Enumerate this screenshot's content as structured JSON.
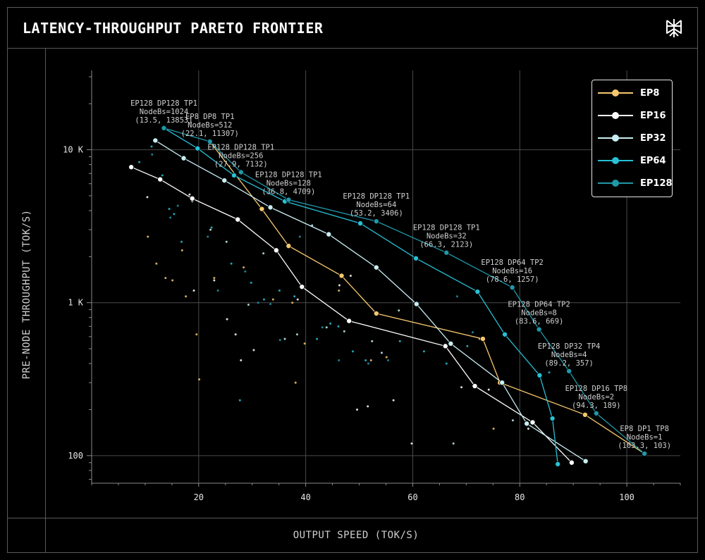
{
  "title": "LATENCY-THROUGHPUT PARETO FRONTIER",
  "colors": {
    "EP8": "#f6c86d",
    "EP16": "#ffffff",
    "EP32": "#c9eef3",
    "EP64": "#27c0d6",
    "EP128": "#1f98a8",
    "grid": "#4a4a4a",
    "axis": "#8a8a8a"
  },
  "legend": {
    "items": [
      {
        "label": "EP8"
      },
      {
        "label": "EP16"
      },
      {
        "label": "EP32"
      },
      {
        "label": "EP64"
      },
      {
        "label": "EP128"
      }
    ]
  },
  "chart_data": {
    "type": "scatter",
    "title": "LATENCY-THROUGHPUT PARETO FRONTIER",
    "xlabel": "OUTPUT SPEED (TOK/S)",
    "ylabel": "PRE-NODE THROUGHPUT (TOK/S)",
    "xlim": [
      0,
      110
    ],
    "ylim": [
      66,
      33000
    ],
    "yscale": "log",
    "xticks": [
      20,
      40,
      60,
      80,
      100
    ],
    "yticks": [
      {
        "value": 100,
        "label": "100"
      },
      {
        "value": 1000,
        "label": "1 K"
      },
      {
        "value": 10000,
        "label": "10 K"
      }
    ],
    "grid": true,
    "legend_position": "top-right",
    "series": [
      {
        "name": "EP8",
        "color": "#f6c86d",
        "frontier": [
          [
            22.1,
            11307
          ],
          [
            31.8,
            4100
          ],
          [
            36.8,
            2350
          ],
          [
            46.7,
            1500
          ],
          [
            53.2,
            850
          ],
          [
            73.1,
            580
          ],
          [
            76.3,
            300
          ],
          [
            92.2,
            185
          ],
          [
            103.3,
            103
          ]
        ],
        "scatter": [
          [
            10.5,
            2700
          ],
          [
            12.1,
            1800
          ],
          [
            13.8,
            1450
          ],
          [
            15.1,
            1400
          ],
          [
            16.9,
            2200
          ],
          [
            17.6,
            1100
          ],
          [
            19.6,
            620
          ],
          [
            20.1,
            315
          ],
          [
            22.9,
            1450
          ],
          [
            28.4,
            1700
          ],
          [
            33.9,
            1050
          ],
          [
            37.5,
            1000
          ],
          [
            38.1,
            300
          ],
          [
            39.8,
            540
          ],
          [
            46.2,
            1200
          ],
          [
            52.2,
            420
          ],
          [
            55.1,
            440
          ],
          [
            72.5,
            580
          ],
          [
            75.1,
            150
          ]
        ]
      },
      {
        "name": "EP16",
        "color": "#ffffff",
        "frontier": [
          [
            7.4,
            7700
          ],
          [
            12.8,
            6400
          ],
          [
            18.8,
            4800
          ],
          [
            27.3,
            3500
          ],
          [
            34.5,
            2200
          ],
          [
            39.3,
            1270
          ],
          [
            48.1,
            760
          ],
          [
            66.1,
            520
          ],
          [
            71.6,
            285
          ],
          [
            82.4,
            165
          ],
          [
            89.7,
            90
          ]
        ],
        "scatter": [
          [
            10.4,
            4900
          ],
          [
            18.3,
            5100
          ],
          [
            19.1,
            1200
          ],
          [
            22.9,
            1400
          ],
          [
            25.3,
            780
          ],
          [
            26.9,
            620
          ],
          [
            27.9,
            420
          ],
          [
            30.3,
            490
          ],
          [
            38.5,
            1050
          ],
          [
            46.3,
            1300
          ],
          [
            48.4,
            1500
          ],
          [
            49.6,
            200
          ],
          [
            51.6,
            210
          ],
          [
            53.1,
            860
          ],
          [
            56.4,
            230
          ],
          [
            59.8,
            120
          ],
          [
            69.1,
            280
          ],
          [
            74.2,
            270
          ],
          [
            81.6,
            150
          ]
        ]
      },
      {
        "name": "EP32",
        "color": "#c9eef3",
        "frontier": [
          [
            11.9,
            11500
          ],
          [
            17.2,
            8800
          ],
          [
            24.8,
            6300
          ],
          [
            33.4,
            4200
          ],
          [
            44.3,
            2800
          ],
          [
            53.2,
            1700
          ],
          [
            60.7,
            980
          ],
          [
            67.1,
            540
          ],
          [
            76.7,
            300
          ],
          [
            81.3,
            162
          ],
          [
            92.3,
            92
          ]
        ],
        "scatter": [
          [
            18.8,
            4600
          ],
          [
            22.2,
            3000
          ],
          [
            25.2,
            2500
          ],
          [
            29.3,
            970
          ],
          [
            32.1,
            2100
          ],
          [
            36.1,
            580
          ],
          [
            38.4,
            620
          ],
          [
            41.2,
            3200
          ],
          [
            43.9,
            690
          ],
          [
            47.2,
            650
          ],
          [
            52.4,
            560
          ],
          [
            54.2,
            470
          ],
          [
            57.4,
            890
          ],
          [
            67.6,
            120
          ],
          [
            78.7,
            170
          ]
        ]
      },
      {
        "name": "EP64",
        "color": "#27c0d6",
        "frontier": [
          [
            13.5,
            13853
          ],
          [
            19.8,
            10200
          ],
          [
            26.6,
            6800
          ],
          [
            36.1,
            4600
          ],
          [
            50.2,
            3300
          ],
          [
            60.6,
            1950
          ],
          [
            72.1,
            1180
          ],
          [
            77.2,
            620
          ],
          [
            83.7,
            335
          ],
          [
            86.1,
            175
          ],
          [
            87.1,
            88
          ]
        ],
        "scatter": [
          [
            8.9,
            8300
          ],
          [
            11.2,
            10500
          ],
          [
            13.2,
            6800
          ],
          [
            14.5,
            4100
          ],
          [
            15.4,
            3800
          ],
          [
            16.8,
            2500
          ],
          [
            22.4,
            3100
          ],
          [
            26.1,
            1800
          ],
          [
            27.7,
            230
          ],
          [
            29.8,
            1350
          ],
          [
            32.2,
            1050
          ],
          [
            35.1,
            1200
          ],
          [
            37.9,
            1100
          ],
          [
            42.1,
            580
          ],
          [
            44.6,
            730
          ],
          [
            46.1,
            700
          ],
          [
            48.8,
            480
          ],
          [
            51.2,
            420
          ],
          [
            57.6,
            560
          ],
          [
            62.1,
            480
          ],
          [
            66.3,
            400
          ],
          [
            70.2,
            520
          ],
          [
            85.5,
            350
          ],
          [
            86.8,
            88
          ]
        ]
      },
      {
        "name": "EP128",
        "color": "#1f98a8",
        "frontier": [
          [
            13.5,
            13853
          ],
          [
            22.1,
            11307
          ],
          [
            27.9,
            7132
          ],
          [
            36.8,
            4709
          ],
          [
            53.2,
            3406
          ],
          [
            66.3,
            2123
          ],
          [
            78.6,
            1257
          ],
          [
            83.6,
            669
          ],
          [
            89.2,
            357
          ],
          [
            94.3,
            189
          ],
          [
            103.3,
            103
          ]
        ],
        "scatter": [
          [
            11.3,
            9300
          ],
          [
            14.7,
            3600
          ],
          [
            16.1,
            4300
          ],
          [
            21.7,
            2700
          ],
          [
            23.6,
            1200
          ],
          [
            28.7,
            1600
          ],
          [
            31.1,
            1000
          ],
          [
            33.4,
            980
          ],
          [
            35.2,
            570
          ],
          [
            38.9,
            2700
          ],
          [
            43.1,
            690
          ],
          [
            46.2,
            420
          ],
          [
            51.7,
            400
          ],
          [
            55.4,
            420
          ],
          [
            68.3,
            1100
          ],
          [
            71.2,
            640
          ]
        ]
      }
    ],
    "annotations": [
      {
        "lines": [
          "EP128 DP128 TP1",
          "NodeBs=1024",
          "(13.5, 13853)"
        ],
        "x": 13.5,
        "y": 13853
      },
      {
        "lines": [
          "EP8 DP8 TP1",
          "NodeBs=512",
          "(22.1, 11307)"
        ],
        "x": 22.1,
        "y": 11307
      },
      {
        "lines": [
          "EP128 DP128 TP1",
          "NodeBs=256",
          "(27.9, 7132)"
        ],
        "x": 27.9,
        "y": 7132
      },
      {
        "lines": [
          "EP128 DP128 TP1",
          "NodeBs=128",
          "(36.8, 4709)"
        ],
        "x": 36.8,
        "y": 4709
      },
      {
        "lines": [
          "EP128 DP128 TP1",
          "NodeBs=64",
          "(53.2, 3406)"
        ],
        "x": 53.2,
        "y": 3406
      },
      {
        "lines": [
          "EP128 DP128 TP1",
          "NodeBs=32",
          "(66.3, 2123)"
        ],
        "x": 66.3,
        "y": 2123
      },
      {
        "lines": [
          "EP128 DP64 TP2",
          "NodeBs=16",
          "(78.6, 1257)"
        ],
        "x": 78.6,
        "y": 1257
      },
      {
        "lines": [
          "EP128 DP64 TP2",
          "NodeBs=8",
          "(83.6, 669)"
        ],
        "x": 83.6,
        "y": 669
      },
      {
        "lines": [
          "EP128 DP32 TP4",
          "NodeBs=4",
          "(89.2, 357)"
        ],
        "x": 89.2,
        "y": 357
      },
      {
        "lines": [
          "EP128 DP16 TP8",
          "NodeBs=2",
          "(94.3, 189)"
        ],
        "x": 94.3,
        "y": 189
      },
      {
        "lines": [
          "EP8 DP1 TP8",
          "NodeBs=1",
          "(103.3, 103)"
        ],
        "x": 103.3,
        "y": 103
      }
    ]
  }
}
